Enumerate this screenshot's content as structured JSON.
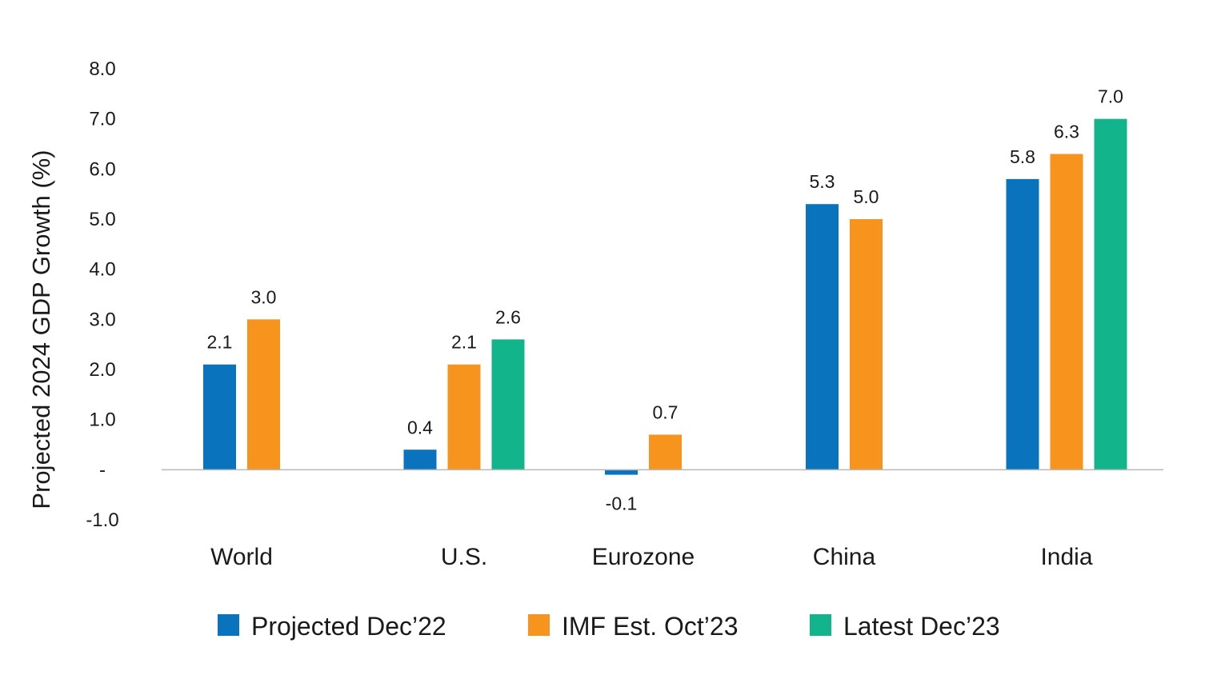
{
  "chart_data": {
    "type": "bar",
    "ylabel": "Projected 2024 GDP Growth (%)",
    "xlabel": "",
    "ylim": [
      -1.0,
      8.0
    ],
    "yticks": [
      {
        "value": 8.0,
        "label": "8.0"
      },
      {
        "value": 7.0,
        "label": "7.0"
      },
      {
        "value": 6.0,
        "label": "6.0"
      },
      {
        "value": 5.0,
        "label": "5.0"
      },
      {
        "value": 4.0,
        "label": "4.0"
      },
      {
        "value": 3.0,
        "label": "3.0"
      },
      {
        "value": 2.0,
        "label": "2.0"
      },
      {
        "value": 1.0,
        "label": "1.0"
      },
      {
        "value": 0.0,
        "label": "-"
      },
      {
        "value": -1.0,
        "label": "-1.0"
      }
    ],
    "categories": [
      "World",
      "U.S.",
      "Eurozone",
      "China",
      "India"
    ],
    "series": [
      {
        "name": "Projected Dec’22",
        "color": "#0a73be",
        "values": [
          2.1,
          0.4,
          -0.1,
          5.3,
          5.8
        ],
        "labels": [
          "2.1",
          "0.4",
          "-0.1",
          "5.3",
          "5.8"
        ]
      },
      {
        "name": "IMF Est. Oct’23",
        "color": "#f7941d",
        "values": [
          3.0,
          2.1,
          0.7,
          5.0,
          6.3
        ],
        "labels": [
          "3.0",
          "2.1",
          "0.7",
          "5.0",
          "6.3"
        ]
      },
      {
        "name": "Latest Dec’23",
        "color": "#12b48c",
        "values": [
          null,
          2.6,
          null,
          null,
          7.0
        ],
        "labels": [
          null,
          "2.6",
          null,
          null,
          "7.0"
        ]
      }
    ],
    "grid": false,
    "legend_position": "bottom"
  }
}
